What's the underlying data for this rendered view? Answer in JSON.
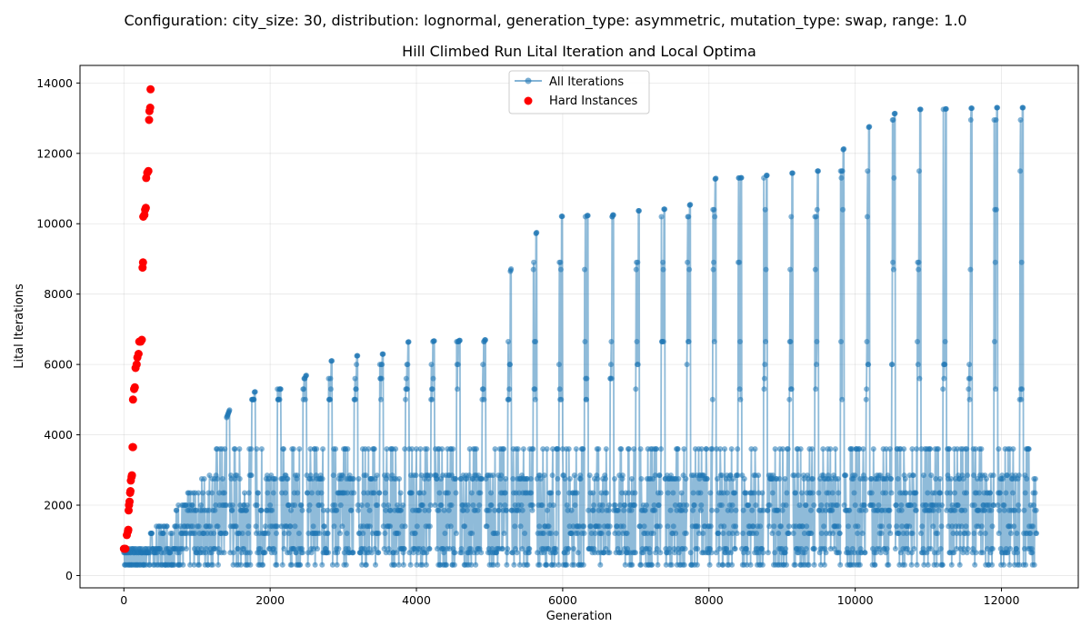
{
  "suptitle": "Configuration: city_size: 30, distribution: lognormal, generation_type: asymmetric, mutation_type: swap, range: 1.0",
  "chart_data": {
    "type": "line",
    "title": "Hill Climbed Run Lital Iteration and Local Optima",
    "xlabel": "Generation",
    "ylabel": "Lital Iterations",
    "xlim": [
      -600,
      13050
    ],
    "ylim": [
      -350,
      14500
    ],
    "xticks": [
      0,
      2000,
      4000,
      6000,
      8000,
      10000,
      12000
    ],
    "yticks": [
      0,
      2000,
      4000,
      6000,
      8000,
      10000,
      12000,
      14000
    ],
    "grid": true,
    "legend": {
      "position": "top-center",
      "entries": [
        "All Iterations",
        "Hard Instances"
      ]
    },
    "colors": {
      "all_iterations": "#1f77b4",
      "hard_instances": "#ff0000"
    },
    "series": [
      {
        "name": "All Iterations",
        "kind": "line-markers",
        "note": "oscillating run; upper envelope per generation window",
        "envelope_x": [
          0,
          400,
          1100,
          1500,
          1900,
          2300,
          2600,
          2900,
          3200,
          3600,
          3900,
          5000,
          5300,
          5800,
          6700,
          6900,
          7700,
          8100,
          8400,
          9200,
          9500,
          10300,
          10700,
          11000,
          11900,
          12400,
          12480
        ],
        "envelope_y": [
          760,
          1300,
          2850,
          5000,
          5300,
          5300,
          5900,
          6150,
          6250,
          6300,
          6650,
          6700,
          8750,
          10200,
          10250,
          10350,
          10450,
          11300,
          11300,
          11450,
          11500,
          12950,
          13250,
          13250,
          13300,
          13300,
          13820
        ],
        "lower_values": [
          300,
          650,
          760,
          1200,
          1400,
          1850,
          2000,
          2350,
          2750,
          2850,
          3600
        ],
        "upper_values": [
          5000,
          5300,
          5600,
          6000,
          6650,
          8700,
          8900,
          10200,
          10400,
          11300,
          11500,
          12950,
          13250,
          13820
        ]
      },
      {
        "name": "Hard Instances",
        "kind": "scatter",
        "points": [
          [
            0,
            760
          ],
          [
            20,
            760
          ],
          [
            40,
            1150
          ],
          [
            55,
            1250
          ],
          [
            60,
            1300
          ],
          [
            65,
            1850
          ],
          [
            70,
            2000
          ],
          [
            78,
            2100
          ],
          [
            85,
            2350
          ],
          [
            90,
            2400
          ],
          [
            95,
            2700
          ],
          [
            105,
            2800
          ],
          [
            110,
            2850
          ],
          [
            118,
            3650
          ],
          [
            125,
            3650
          ],
          [
            125,
            5000
          ],
          [
            140,
            5300
          ],
          [
            150,
            5350
          ],
          [
            160,
            5900
          ],
          [
            175,
            6000
          ],
          [
            185,
            6200
          ],
          [
            200,
            6300
          ],
          [
            210,
            6650
          ],
          [
            230,
            6650
          ],
          [
            245,
            6700
          ],
          [
            255,
            8750
          ],
          [
            262,
            8900
          ],
          [
            265,
            10200
          ],
          [
            280,
            10250
          ],
          [
            290,
            10400
          ],
          [
            300,
            10450
          ],
          [
            305,
            11300
          ],
          [
            320,
            11450
          ],
          [
            335,
            11500
          ],
          [
            345,
            12950
          ],
          [
            350,
            13200
          ],
          [
            360,
            13300
          ],
          [
            365,
            13820
          ]
        ]
      }
    ]
  }
}
